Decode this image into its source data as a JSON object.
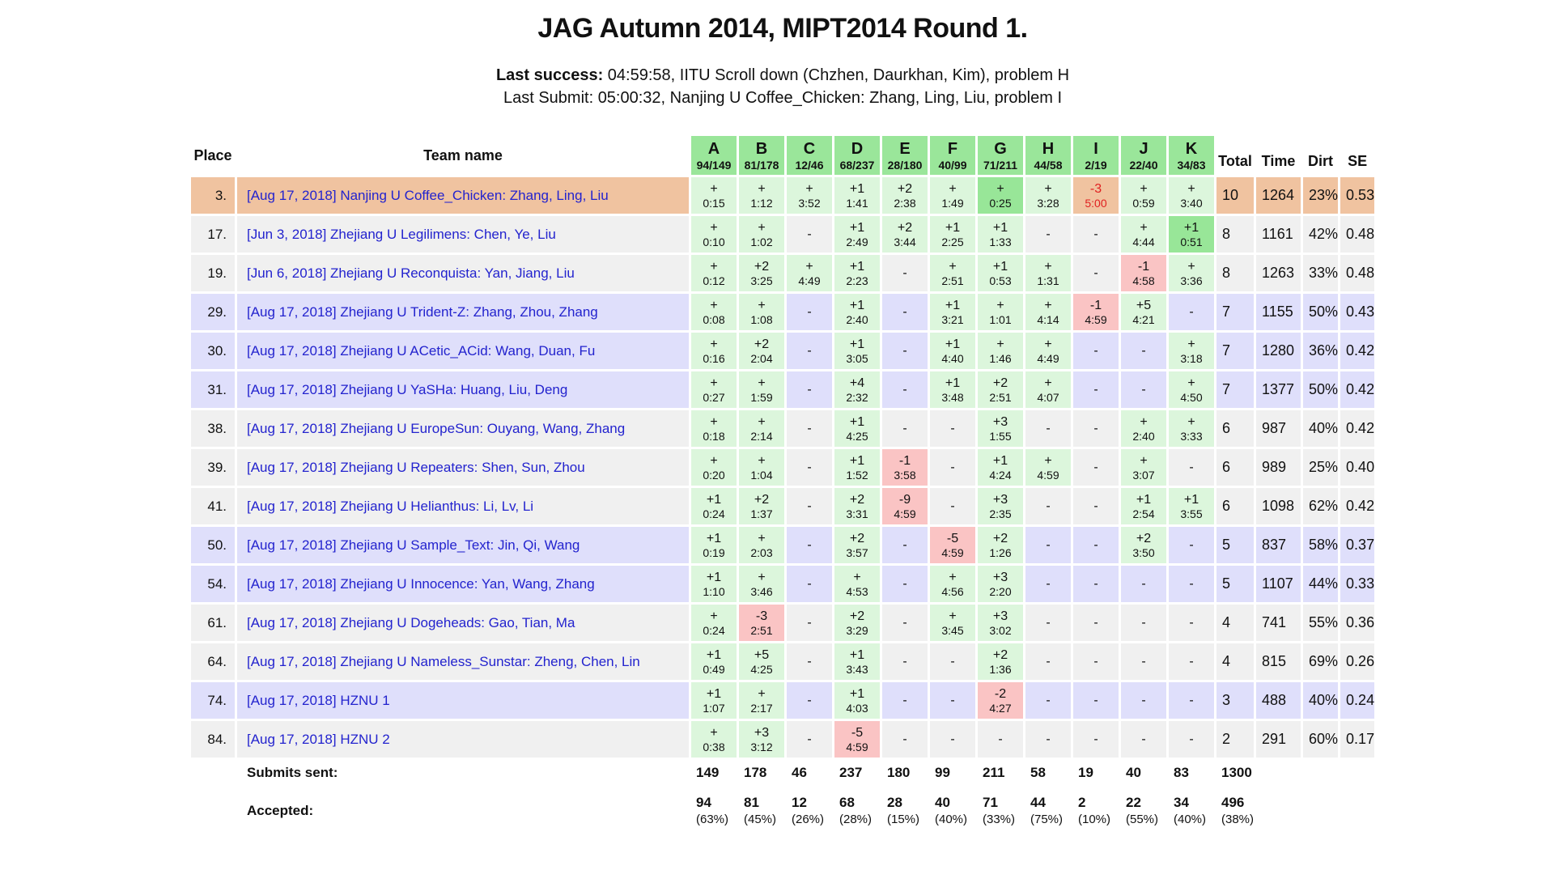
{
  "header": {
    "title": "JAG Autumn 2014, MIPT2014 Round 1.",
    "last_success_label": "Last success:",
    "last_success_text": " 04:59:58, IITU Scroll down (Chzhen, Daurkhan, Kim), problem H",
    "last_submit_text": "Last Submit: 05:00:32, Nanjing U Coffee_Chicken: Zhang, Ling, Liu, problem I"
  },
  "colors": {
    "header_green": "#9AE69A",
    "solved_green": "#DCF6DC",
    "first_green": "#98E698",
    "failed_pink": "#FAC4C4",
    "highlight_orange": "#F0C3A0",
    "row_gray": "#F0F0F0",
    "row_lavender": "#DFDFFB",
    "team_link_blue": "#2323CE",
    "fail_text_red": "#E02020"
  },
  "table": {
    "place_header": "Place",
    "team_header": "Team name",
    "stat_headers": [
      "Total",
      "Time",
      "Dirt",
      "SE"
    ],
    "problems": [
      {
        "letter": "A",
        "ratio": "94/149"
      },
      {
        "letter": "B",
        "ratio": "81/178"
      },
      {
        "letter": "C",
        "ratio": "12/46"
      },
      {
        "letter": "D",
        "ratio": "68/237"
      },
      {
        "letter": "E",
        "ratio": "28/180"
      },
      {
        "letter": "F",
        "ratio": "40/99"
      },
      {
        "letter": "G",
        "ratio": "71/211"
      },
      {
        "letter": "H",
        "ratio": "44/58"
      },
      {
        "letter": "I",
        "ratio": "2/19"
      },
      {
        "letter": "J",
        "ratio": "22/40"
      },
      {
        "letter": "K",
        "ratio": "34/83"
      }
    ],
    "rows": [
      {
        "place": "3.",
        "team": "[Aug 17, 2018] Nanjing U Coffee_Chicken: Zhang, Ling, Liu",
        "style": "highlight",
        "cells": [
          {
            "a": "+",
            "t": "0:15",
            "s": "ok"
          },
          {
            "a": "+",
            "t": "1:12",
            "s": "ok"
          },
          {
            "a": "+",
            "t": "3:52",
            "s": "ok"
          },
          {
            "a": "+1",
            "t": "1:41",
            "s": "ok"
          },
          {
            "a": "+2",
            "t": "2:38",
            "s": "ok"
          },
          {
            "a": "+",
            "t": "1:49",
            "s": "ok"
          },
          {
            "a": "+",
            "t": "0:25",
            "s": "first"
          },
          {
            "a": "+",
            "t": "3:28",
            "s": "ok"
          },
          {
            "a": "-3",
            "t": "5:00",
            "s": "last"
          },
          {
            "a": "+",
            "t": "0:59",
            "s": "ok"
          },
          {
            "a": "+",
            "t": "3:40",
            "s": "ok"
          }
        ],
        "total": "10",
        "time": "1264",
        "dirt": "23%",
        "se": "0.53"
      },
      {
        "place": "17.",
        "team": "[Jun 3, 2018] Zhejiang U Legilimens: Chen, Ye, Liu",
        "style": "gray",
        "cells": [
          {
            "a": "+",
            "t": "0:10",
            "s": "ok"
          },
          {
            "a": "+",
            "t": "1:02",
            "s": "ok"
          },
          {
            "s": "none"
          },
          {
            "a": "+1",
            "t": "2:49",
            "s": "ok"
          },
          {
            "a": "+2",
            "t": "3:44",
            "s": "ok"
          },
          {
            "a": "+1",
            "t": "2:25",
            "s": "ok"
          },
          {
            "a": "+1",
            "t": "1:33",
            "s": "ok"
          },
          {
            "s": "none"
          },
          {
            "s": "none"
          },
          {
            "a": "+",
            "t": "4:44",
            "s": "ok"
          },
          {
            "a": "+1",
            "t": "0:51",
            "s": "first"
          }
        ],
        "total": "8",
        "time": "1161",
        "dirt": "42%",
        "se": "0.48"
      },
      {
        "place": "19.",
        "team": "[Jun 6, 2018] Zhejiang U Reconquista: Yan, Jiang, Liu",
        "style": "gray",
        "cells": [
          {
            "a": "+",
            "t": "0:12",
            "s": "ok"
          },
          {
            "a": "+2",
            "t": "3:25",
            "s": "ok"
          },
          {
            "a": "+",
            "t": "4:49",
            "s": "ok"
          },
          {
            "a": "+1",
            "t": "2:23",
            "s": "ok"
          },
          {
            "s": "none"
          },
          {
            "a": "+",
            "t": "2:51",
            "s": "ok"
          },
          {
            "a": "+1",
            "t": "0:53",
            "s": "ok"
          },
          {
            "a": "+",
            "t": "1:31",
            "s": "ok"
          },
          {
            "s": "none"
          },
          {
            "a": "-1",
            "t": "4:58",
            "s": "fail"
          },
          {
            "a": "+",
            "t": "3:36",
            "s": "ok"
          }
        ],
        "total": "8",
        "time": "1263",
        "dirt": "33%",
        "se": "0.48"
      },
      {
        "place": "29.",
        "team": "[Aug 17, 2018] Zhejiang U Trident-Z: Zhang, Zhou, Zhang",
        "style": "lavender",
        "cells": [
          {
            "a": "+",
            "t": "0:08",
            "s": "ok"
          },
          {
            "a": "+",
            "t": "1:08",
            "s": "ok"
          },
          {
            "s": "none"
          },
          {
            "a": "+1",
            "t": "2:40",
            "s": "ok"
          },
          {
            "s": "none"
          },
          {
            "a": "+1",
            "t": "3:21",
            "s": "ok"
          },
          {
            "a": "+",
            "t": "1:01",
            "s": "ok"
          },
          {
            "a": "+",
            "t": "4:14",
            "s": "ok"
          },
          {
            "a": "-1",
            "t": "4:59",
            "s": "fail"
          },
          {
            "a": "+5",
            "t": "4:21",
            "s": "ok"
          },
          {
            "s": "none"
          }
        ],
        "total": "7",
        "time": "1155",
        "dirt": "50%",
        "se": "0.43"
      },
      {
        "place": "30.",
        "team": "[Aug 17, 2018] Zhejiang U ACetic_ACid: Wang, Duan, Fu",
        "style": "lavender",
        "cells": [
          {
            "a": "+",
            "t": "0:16",
            "s": "ok"
          },
          {
            "a": "+2",
            "t": "2:04",
            "s": "ok"
          },
          {
            "s": "none"
          },
          {
            "a": "+1",
            "t": "3:05",
            "s": "ok"
          },
          {
            "s": "none"
          },
          {
            "a": "+1",
            "t": "4:40",
            "s": "ok"
          },
          {
            "a": "+",
            "t": "1:46",
            "s": "ok"
          },
          {
            "a": "+",
            "t": "4:49",
            "s": "ok"
          },
          {
            "s": "none"
          },
          {
            "s": "none"
          },
          {
            "a": "+",
            "t": "3:18",
            "s": "ok"
          }
        ],
        "total": "7",
        "time": "1280",
        "dirt": "36%",
        "se": "0.42"
      },
      {
        "place": "31.",
        "team": "[Aug 17, 2018] Zhejiang U YaSHa: Huang, Liu, Deng",
        "style": "lavender",
        "cells": [
          {
            "a": "+",
            "t": "0:27",
            "s": "ok"
          },
          {
            "a": "+",
            "t": "1:59",
            "s": "ok"
          },
          {
            "s": "none"
          },
          {
            "a": "+4",
            "t": "2:32",
            "s": "ok"
          },
          {
            "s": "none"
          },
          {
            "a": "+1",
            "t": "3:48",
            "s": "ok"
          },
          {
            "a": "+2",
            "t": "2:51",
            "s": "ok"
          },
          {
            "a": "+",
            "t": "4:07",
            "s": "ok"
          },
          {
            "s": "none"
          },
          {
            "s": "none"
          },
          {
            "a": "+",
            "t": "4:50",
            "s": "ok"
          }
        ],
        "total": "7",
        "time": "1377",
        "dirt": "50%",
        "se": "0.42"
      },
      {
        "place": "38.",
        "team": "[Aug 17, 2018] Zhejiang U EuropeSun: Ouyang, Wang, Zhang",
        "style": "gray",
        "cells": [
          {
            "a": "+",
            "t": "0:18",
            "s": "ok"
          },
          {
            "a": "+",
            "t": "2:14",
            "s": "ok"
          },
          {
            "s": "none"
          },
          {
            "a": "+1",
            "t": "4:25",
            "s": "ok"
          },
          {
            "s": "none"
          },
          {
            "s": "none"
          },
          {
            "a": "+3",
            "t": "1:55",
            "s": "ok"
          },
          {
            "s": "none"
          },
          {
            "s": "none"
          },
          {
            "a": "+",
            "t": "2:40",
            "s": "ok"
          },
          {
            "a": "+",
            "t": "3:33",
            "s": "ok"
          }
        ],
        "total": "6",
        "time": "987",
        "dirt": "40%",
        "se": "0.42"
      },
      {
        "place": "39.",
        "team": "[Aug 17, 2018] Zhejiang U Repeaters: Shen, Sun, Zhou",
        "style": "gray",
        "cells": [
          {
            "a": "+",
            "t": "0:20",
            "s": "ok"
          },
          {
            "a": "+",
            "t": "1:04",
            "s": "ok"
          },
          {
            "s": "none"
          },
          {
            "a": "+1",
            "t": "1:52",
            "s": "ok"
          },
          {
            "a": "-1",
            "t": "3:58",
            "s": "fail"
          },
          {
            "s": "none"
          },
          {
            "a": "+1",
            "t": "4:24",
            "s": "ok"
          },
          {
            "a": "+",
            "t": "4:59",
            "s": "ok"
          },
          {
            "s": "none"
          },
          {
            "a": "+",
            "t": "3:07",
            "s": "ok"
          },
          {
            "s": "none"
          }
        ],
        "total": "6",
        "time": "989",
        "dirt": "25%",
        "se": "0.40"
      },
      {
        "place": "41.",
        "team": "[Aug 17, 2018] Zhejiang U Helianthus: Li, Lv, Li",
        "style": "gray",
        "cells": [
          {
            "a": "+1",
            "t": "0:24",
            "s": "ok"
          },
          {
            "a": "+2",
            "t": "1:37",
            "s": "ok"
          },
          {
            "s": "none"
          },
          {
            "a": "+2",
            "t": "3:31",
            "s": "ok"
          },
          {
            "a": "-9",
            "t": "4:59",
            "s": "fail"
          },
          {
            "s": "none"
          },
          {
            "a": "+3",
            "t": "2:35",
            "s": "ok"
          },
          {
            "s": "none"
          },
          {
            "s": "none"
          },
          {
            "a": "+1",
            "t": "2:54",
            "s": "ok"
          },
          {
            "a": "+1",
            "t": "3:55",
            "s": "ok"
          }
        ],
        "total": "6",
        "time": "1098",
        "dirt": "62%",
        "se": "0.42"
      },
      {
        "place": "50.",
        "team": "[Aug 17, 2018] Zhejiang U Sample_Text: Jin, Qi, Wang",
        "style": "lavender",
        "cells": [
          {
            "a": "+1",
            "t": "0:19",
            "s": "ok"
          },
          {
            "a": "+",
            "t": "2:03",
            "s": "ok"
          },
          {
            "s": "none"
          },
          {
            "a": "+2",
            "t": "3:57",
            "s": "ok"
          },
          {
            "s": "none"
          },
          {
            "a": "-5",
            "t": "4:59",
            "s": "fail"
          },
          {
            "a": "+2",
            "t": "1:26",
            "s": "ok"
          },
          {
            "s": "none"
          },
          {
            "s": "none"
          },
          {
            "a": "+2",
            "t": "3:50",
            "s": "ok"
          },
          {
            "s": "none"
          }
        ],
        "total": "5",
        "time": "837",
        "dirt": "58%",
        "se": "0.37"
      },
      {
        "place": "54.",
        "team": "[Aug 17, 2018] Zhejiang U Innocence: Yan, Wang, Zhang",
        "style": "lavender",
        "cells": [
          {
            "a": "+1",
            "t": "1:10",
            "s": "ok"
          },
          {
            "a": "+",
            "t": "3:46",
            "s": "ok"
          },
          {
            "s": "none"
          },
          {
            "a": "+",
            "t": "4:53",
            "s": "ok"
          },
          {
            "s": "none"
          },
          {
            "a": "+",
            "t": "4:56",
            "s": "ok"
          },
          {
            "a": "+3",
            "t": "2:20",
            "s": "ok"
          },
          {
            "s": "none"
          },
          {
            "s": "none"
          },
          {
            "s": "none"
          },
          {
            "s": "none"
          }
        ],
        "total": "5",
        "time": "1107",
        "dirt": "44%",
        "se": "0.33"
      },
      {
        "place": "61.",
        "team": "[Aug 17, 2018] Zhejiang U Dogeheads: Gao, Tian, Ma",
        "style": "gray",
        "cells": [
          {
            "a": "+",
            "t": "0:24",
            "s": "ok"
          },
          {
            "a": "-3",
            "t": "2:51",
            "s": "fail"
          },
          {
            "s": "none"
          },
          {
            "a": "+2",
            "t": "3:29",
            "s": "ok"
          },
          {
            "s": "none"
          },
          {
            "a": "+",
            "t": "3:45",
            "s": "ok"
          },
          {
            "a": "+3",
            "t": "3:02",
            "s": "ok"
          },
          {
            "s": "none"
          },
          {
            "s": "none"
          },
          {
            "s": "none"
          },
          {
            "s": "none"
          }
        ],
        "total": "4",
        "time": "741",
        "dirt": "55%",
        "se": "0.36"
      },
      {
        "place": "64.",
        "team": "[Aug 17, 2018] Zhejiang U Nameless_Sunstar: Zheng, Chen, Lin",
        "style": "gray",
        "cells": [
          {
            "a": "+1",
            "t": "0:49",
            "s": "ok"
          },
          {
            "a": "+5",
            "t": "4:25",
            "s": "ok"
          },
          {
            "s": "none"
          },
          {
            "a": "+1",
            "t": "3:43",
            "s": "ok"
          },
          {
            "s": "none"
          },
          {
            "s": "none"
          },
          {
            "a": "+2",
            "t": "1:36",
            "s": "ok"
          },
          {
            "s": "none"
          },
          {
            "s": "none"
          },
          {
            "s": "none"
          },
          {
            "s": "none"
          }
        ],
        "total": "4",
        "time": "815",
        "dirt": "69%",
        "se": "0.26"
      },
      {
        "place": "74.",
        "team": "[Aug 17, 2018] HZNU 1",
        "style": "lavender",
        "cells": [
          {
            "a": "+1",
            "t": "1:07",
            "s": "ok"
          },
          {
            "a": "+",
            "t": "2:17",
            "s": "ok"
          },
          {
            "s": "none"
          },
          {
            "a": "+1",
            "t": "4:03",
            "s": "ok"
          },
          {
            "s": "none"
          },
          {
            "s": "none"
          },
          {
            "a": "-2",
            "t": "4:27",
            "s": "fail"
          },
          {
            "s": "none"
          },
          {
            "s": "none"
          },
          {
            "s": "none"
          },
          {
            "s": "none"
          }
        ],
        "total": "3",
        "time": "488",
        "dirt": "40%",
        "se": "0.24"
      },
      {
        "place": "84.",
        "team": "[Aug 17, 2018] HZNU 2",
        "style": "gray",
        "cells": [
          {
            "a": "+",
            "t": "0:38",
            "s": "ok"
          },
          {
            "a": "+3",
            "t": "3:12",
            "s": "ok"
          },
          {
            "s": "none"
          },
          {
            "a": "-5",
            "t": "4:59",
            "s": "fail"
          },
          {
            "s": "none"
          },
          {
            "s": "none"
          },
          {
            "s": "none"
          },
          {
            "s": "none"
          },
          {
            "s": "none"
          },
          {
            "s": "none"
          },
          {
            "s": "none"
          }
        ],
        "total": "2",
        "time": "291",
        "dirt": "60%",
        "se": "0.17"
      }
    ],
    "footer": {
      "submits_label": "Submits sent:",
      "submits": [
        "149",
        "178",
        "46",
        "237",
        "180",
        "99",
        "211",
        "58",
        "19",
        "40",
        "83"
      ],
      "submits_total": "1300",
      "accepted_label": "Accepted:",
      "accepted": [
        "94",
        "81",
        "12",
        "68",
        "28",
        "40",
        "71",
        "44",
        "2",
        "22",
        "34"
      ],
      "accepted_pct": [
        "(63%)",
        "(45%)",
        "(26%)",
        "(28%)",
        "(15%)",
        "(40%)",
        "(33%)",
        "(75%)",
        "(10%)",
        "(55%)",
        "(40%)"
      ],
      "accepted_total": "496",
      "accepted_total_pct": "(38%)"
    }
  }
}
